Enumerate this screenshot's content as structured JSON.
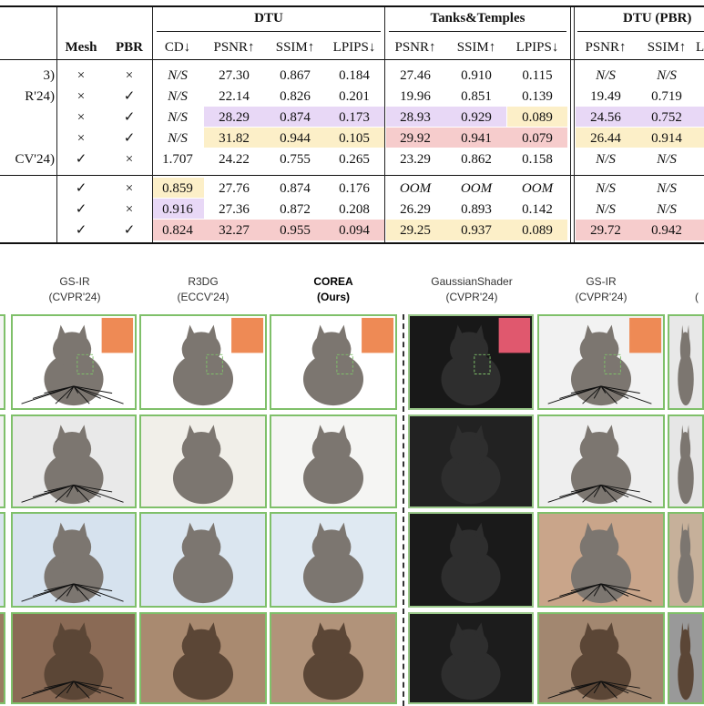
{
  "table": {
    "group_headers": {
      "dtu": "DTU",
      "tanks": "Tanks&Temples",
      "dtu_pbr": "DTU (PBR)"
    },
    "columns": {
      "mesh": "Mesh",
      "pbr": "PBR",
      "cd": "CD↓",
      "psnr1": "PSNR↑",
      "ssim1": "SSIM↑",
      "lpips1": "LPIPS↓",
      "psnr2": "PSNR↑",
      "ssim2": "SSIM↑",
      "lpips2": "LPIPS↓",
      "psnr3": "PSNR↑",
      "ssim3": "SSIM↑"
    },
    "row_labels": [
      "3)",
      "R'24)",
      "",
      "",
      "CV'24)",
      "",
      "",
      ""
    ],
    "rows": [
      {
        "mesh": "×",
        "pbr": "×",
        "cd": "N/S",
        "psnr1": "27.30",
        "ssim1": "0.867",
        "lpips1": "0.184",
        "psnr2": "27.46",
        "ssim2": "0.910",
        "lpips2": "0.115",
        "psnr3": "N/S",
        "ssim3": "N/S"
      },
      {
        "mesh": "×",
        "pbr": "✓",
        "cd": "N/S",
        "psnr1": "22.14",
        "ssim1": "0.826",
        "lpips1": "0.201",
        "psnr2": "19.96",
        "ssim2": "0.851",
        "lpips2": "0.139",
        "psnr3": "19.49",
        "ssim3": "0.719"
      },
      {
        "mesh": "×",
        "pbr": "✓",
        "cd": "N/S",
        "psnr1": "28.29",
        "ssim1": "0.874",
        "lpips1": "0.173",
        "psnr2": "28.93",
        "ssim2": "0.929",
        "lpips2": "0.089",
        "psnr3": "24.56",
        "ssim3": "0.752"
      },
      {
        "mesh": "×",
        "pbr": "✓",
        "cd": "N/S",
        "psnr1": "31.82",
        "ssim1": "0.944",
        "lpips1": "0.105",
        "psnr2": "29.92",
        "ssim2": "0.941",
        "lpips2": "0.079",
        "psnr3": "26.44",
        "ssim3": "0.914"
      },
      {
        "mesh": "✓",
        "pbr": "×",
        "cd": "1.707",
        "psnr1": "24.22",
        "ssim1": "0.755",
        "lpips1": "0.265",
        "psnr2": "23.29",
        "ssim2": "0.862",
        "lpips2": "0.158",
        "psnr3": "N/S",
        "ssim3": "N/S"
      },
      {
        "mesh": "✓",
        "pbr": "×",
        "cd": "0.859",
        "psnr1": "27.76",
        "ssim1": "0.874",
        "lpips1": "0.176",
        "psnr2": "OOM",
        "ssim2": "OOM",
        "lpips2": "OOM",
        "psnr3": "N/S",
        "ssim3": "N/S"
      },
      {
        "mesh": "✓",
        "pbr": "×",
        "cd": "0.916",
        "psnr1": "27.36",
        "ssim1": "0.872",
        "lpips1": "0.208",
        "psnr2": "26.29",
        "ssim2": "0.893",
        "lpips2": "0.142",
        "psnr3": "N/S",
        "ssim3": "N/S"
      },
      {
        "mesh": "✓",
        "pbr": "✓",
        "cd": "0.824",
        "psnr1": "32.27",
        "ssim1": "0.955",
        "lpips1": "0.094",
        "psnr2": "29.25",
        "ssim2": "0.937",
        "lpips2": "0.089",
        "psnr3": "29.72",
        "ssim3": "0.942"
      }
    ],
    "highlight_colors": {
      "best": "#f6cccc",
      "second": "#fcefc8",
      "third": "#e8d8f6"
    }
  },
  "figure": {
    "captions": [
      {
        "line1": "GS-IR",
        "line2": "(CVPR'24)",
        "bold": false
      },
      {
        "line1": "R3DG",
        "line2": "(ECCV'24)",
        "bold": false
      },
      {
        "line1": "COREA",
        "line2": "(Ours)",
        "bold": true
      },
      {
        "line1": "GaussianShader",
        "line2": "(CVPR'24)",
        "bold": false
      },
      {
        "line1": "GS-IR",
        "line2": "(CVPR'24)",
        "bold": false
      },
      {
        "line1": "(",
        "line2": "",
        "bold": false
      }
    ],
    "frame_color": "#7fc06a"
  }
}
